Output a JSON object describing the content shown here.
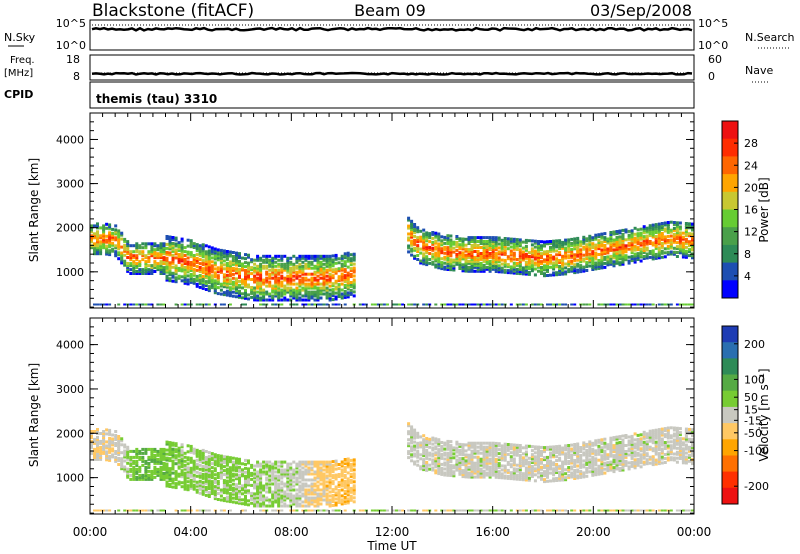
{
  "header": {
    "station": "Blackstone (fitACF)",
    "beam": "Beam 09",
    "date": "03/Sep/2008"
  },
  "strips": {
    "nsky_label": "N.Sky",
    "nsearch_label": "N.Search",
    "nsky_ticks": [
      "10^5",
      "10^0"
    ],
    "freq_label": "Freq.",
    "freq_unit": "[MHz]",
    "freq_ticks": [
      "18",
      "8"
    ],
    "nave_label": "Nave",
    "nave_ticks": [
      "60",
      "0"
    ],
    "cpid_label": "CPID",
    "cpid_value": "themis (tau) 3310"
  },
  "colors": {
    "power": [
      "#0000ff",
      "#1e4fb2",
      "#2e8b57",
      "#4aa04a",
      "#66cc33",
      "#c8c832",
      "#ffa500",
      "#ff6600",
      "#ff2d00",
      "#ee1111"
    ],
    "velocity": [
      "#1e3cb4",
      "#2a6fb0",
      "#2e8b57",
      "#55aa44",
      "#77cc33",
      "#c8c8c0",
      "#ffc864",
      "#ffa500",
      "#ff7000",
      "#ff3000",
      "#ee1111"
    ]
  },
  "chart_data": [
    {
      "type": "heatmap",
      "name": "power",
      "ylabel": "Slant Range [km]",
      "ytick_labels": [
        "1000",
        "2000",
        "3000",
        "4000"
      ],
      "ylim": [
        180,
        4600
      ],
      "xlim": [
        0,
        24
      ],
      "colorbar_label": "Power [dB]",
      "colorbar_ticks": [
        "4",
        "8",
        "12",
        "16",
        "20",
        "24",
        "28"
      ],
      "colorbar_range": [
        0,
        32
      ],
      "series": [
        {
          "name": "",
          "x": [
            0.0,
            0.5,
            1.0,
            1.5,
            2.0,
            2.5,
            3.0,
            3.5,
            4.0,
            4.5,
            5.0,
            5.5,
            6.0,
            6.5,
            7.0,
            7.5,
            8.0,
            8.5,
            9.0,
            9.5,
            10.0,
            10.5
          ],
          "y": [
            1750,
            1750,
            1700,
            1300,
            1300,
            1300,
            1300,
            1250,
            1200,
            1100,
            1000,
            950,
            900,
            850,
            850,
            850,
            850,
            850,
            850,
            850,
            900,
            950
          ]
        },
        {
          "name": "",
          "x": [
            12.5,
            13.0,
            14.0,
            15.0,
            16.0,
            17.0,
            18.0,
            19.0,
            20.0,
            21.0,
            22.0,
            23.0,
            24.0
          ],
          "y": [
            1900,
            1600,
            1450,
            1400,
            1400,
            1350,
            1300,
            1350,
            1450,
            1550,
            1650,
            1750,
            1700
          ]
        }
      ]
    },
    {
      "type": "heatmap",
      "name": "velocity",
      "ylabel": "Slant Range [km]",
      "ytick_labels": [
        "1000",
        "2000",
        "3000",
        "4000"
      ],
      "ylim": [
        180,
        4600
      ],
      "xlim": [
        0,
        24
      ],
      "colorbar_label": "Velocity [m s⁻¹]",
      "colorbar_ticks": [
        "200",
        "100",
        "50",
        "15",
        "-15",
        "-50",
        "-100",
        "-200"
      ],
      "colorbar_range": [
        -250,
        250
      ],
      "xlabel": "Time UT",
      "xtick_labels": [
        "00:00",
        "04:00",
        "08:00",
        "12:00",
        "16:00",
        "20:00",
        "00:00"
      ],
      "xticks": [
        0,
        4,
        8,
        12,
        16,
        20,
        24
      ],
      "series": [
        {
          "name": "",
          "x": [
            0,
            1,
            2,
            3,
            4,
            5,
            6,
            7,
            8,
            9,
            10,
            10.5
          ],
          "y": [
            -15,
            -15,
            80,
            60,
            40,
            40,
            40,
            30,
            20,
            -40,
            -60,
            -60
          ]
        },
        {
          "name": "",
          "x": [
            12.5,
            14,
            16,
            18,
            20,
            22,
            24
          ],
          "y": [
            0,
            0,
            0,
            0,
            0,
            0,
            0
          ]
        }
      ]
    }
  ]
}
